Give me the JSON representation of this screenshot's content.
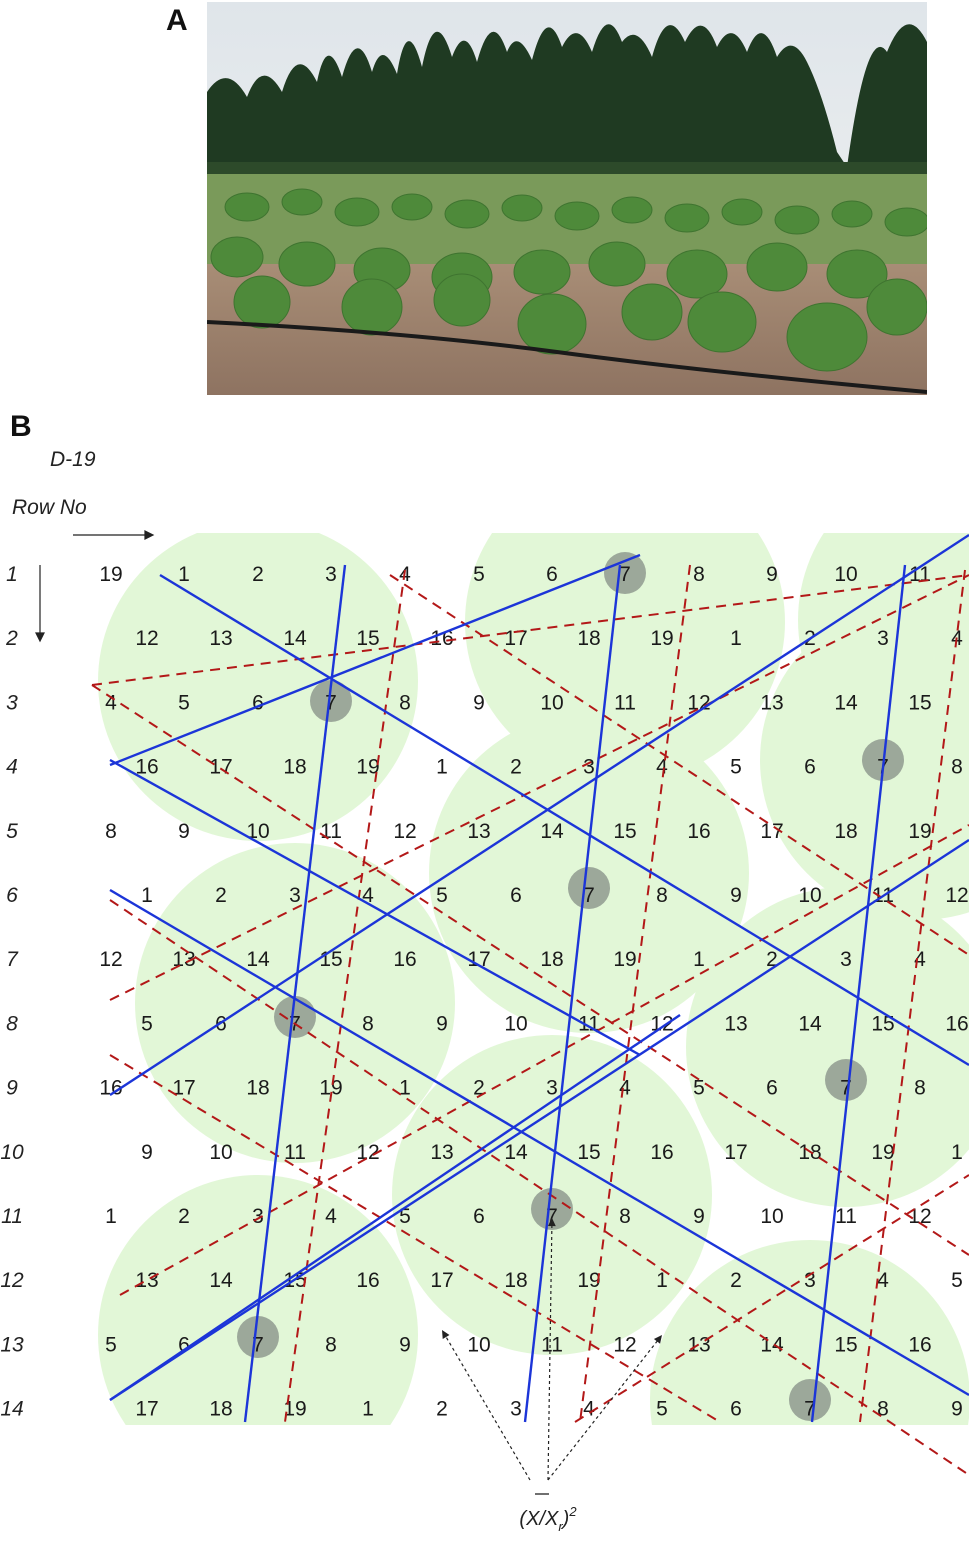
{
  "panel_a": {
    "label": "A"
  },
  "panel_b": {
    "label": "B",
    "design_code": "D-19",
    "row_header": "Row No",
    "row_numbers": [
      "1",
      "2",
      "3",
      "4",
      "5",
      "6",
      "7",
      "8",
      "9",
      "10",
      "11",
      "12",
      "13",
      "14"
    ],
    "grid_rows": [
      [
        "19",
        "1",
        "2",
        "3",
        "4",
        "5",
        "6",
        "7",
        "8",
        "9",
        "10",
        "11"
      ],
      [
        "12",
        "13",
        "14",
        "15",
        "16",
        "17",
        "18",
        "19",
        "1",
        "2",
        "3",
        "4"
      ],
      [
        "4",
        "5",
        "6",
        "7",
        "8",
        "9",
        "10",
        "11",
        "12",
        "13",
        "14",
        "15"
      ],
      [
        "16",
        "17",
        "18",
        "19",
        "1",
        "2",
        "3",
        "4",
        "5",
        "6",
        "7",
        "8"
      ],
      [
        "8",
        "9",
        "10",
        "11",
        "12",
        "13",
        "14",
        "15",
        "16",
        "17",
        "18",
        "19"
      ],
      [
        "1",
        "2",
        "3",
        "4",
        "5",
        "6",
        "7",
        "8",
        "9",
        "10",
        "11",
        "12"
      ],
      [
        "12",
        "13",
        "14",
        "15",
        "16",
        "17",
        "18",
        "19",
        "1",
        "2",
        "3",
        "4"
      ],
      [
        "5",
        "6",
        "7",
        "8",
        "9",
        "10",
        "11",
        "12",
        "13",
        "14",
        "15",
        "16"
      ],
      [
        "16",
        "17",
        "18",
        "19",
        "1",
        "2",
        "3",
        "4",
        "5",
        "6",
        "7",
        "8"
      ],
      [
        "9",
        "10",
        "11",
        "12",
        "13",
        "14",
        "15",
        "16",
        "17",
        "18",
        "19",
        "1"
      ],
      [
        "1",
        "2",
        "3",
        "4",
        "5",
        "6",
        "7",
        "8",
        "9",
        "10",
        "11",
        "12"
      ],
      [
        "13",
        "14",
        "15",
        "16",
        "17",
        "18",
        "19",
        "1",
        "2",
        "3",
        "4",
        "5"
      ],
      [
        "5",
        "6",
        "7",
        "8",
        "9",
        "10",
        "11",
        "12",
        "13",
        "14",
        "15",
        "16"
      ],
      [
        "17",
        "18",
        "19",
        "1",
        "2",
        "3",
        "4",
        "5",
        "6",
        "7",
        "8",
        "9"
      ]
    ],
    "formula": {
      "base": "(X/X",
      "overbar": "X",
      "subscript": "r",
      "close": ")",
      "superscript": "2"
    },
    "colors": {
      "circle_fill": "#e2f7d7",
      "highlight": "#8f9a8f",
      "triangle_lines": "#1c35d8",
      "hexagon_dashes": "#b31818",
      "arrows": "#222222"
    }
  }
}
